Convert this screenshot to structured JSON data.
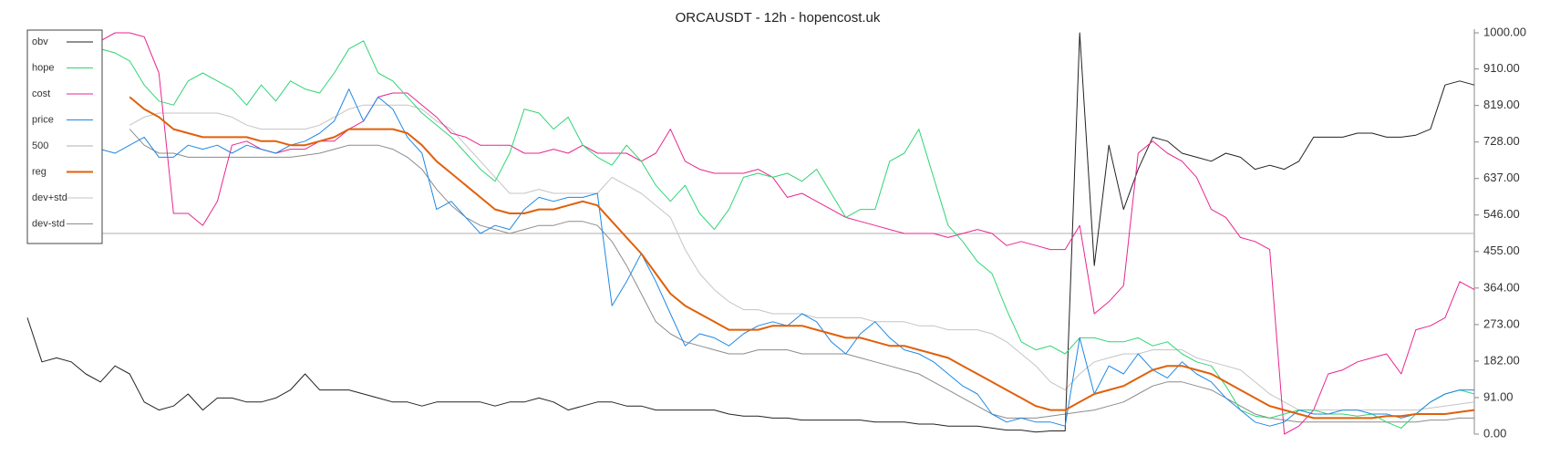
{
  "chart_data": {
    "type": "line",
    "title": "ORCAUSDT - 12h - hopencost.uk",
    "ylim": [
      0,
      1000
    ],
    "yticks": [
      {
        "value": 0,
        "label": "0.00"
      },
      {
        "value": 91,
        "label": "91.00"
      },
      {
        "value": 182,
        "label": "182.00"
      },
      {
        "value": 273,
        "label": "273.00"
      },
      {
        "value": 364,
        "label": "364.00"
      },
      {
        "value": 455,
        "label": "455.00"
      },
      {
        "value": 546,
        "label": "546.00"
      },
      {
        "value": 637,
        "label": "637.00"
      },
      {
        "value": 728,
        "label": "728.00"
      },
      {
        "value": 819,
        "label": "819.00"
      },
      {
        "value": 910,
        "label": "910.00"
      },
      {
        "value": 1000,
        "label": "1000.00"
      }
    ],
    "grid": false,
    "legend": "upper-left",
    "series": [
      {
        "name": "obv",
        "color": "#222222",
        "width": 1,
        "values": [
          290,
          180,
          190,
          180,
          150,
          130,
          170,
          150,
          80,
          60,
          70,
          100,
          60,
          90,
          90,
          80,
          80,
          90,
          110,
          150,
          110,
          110,
          110,
          100,
          90,
          80,
          80,
          70,
          80,
          80,
          80,
          80,
          70,
          80,
          80,
          90,
          80,
          60,
          70,
          80,
          80,
          70,
          70,
          60,
          60,
          60,
          60,
          60,
          50,
          45,
          45,
          40,
          40,
          35,
          35,
          35,
          35,
          35,
          30,
          30,
          30,
          25,
          25,
          20,
          20,
          20,
          15,
          10,
          10,
          5,
          8,
          8,
          1000,
          420,
          720,
          560,
          660,
          740,
          730,
          700,
          690,
          680,
          700,
          690,
          660,
          670,
          660,
          680,
          740,
          740,
          740,
          750,
          750,
          740,
          740,
          745,
          760,
          870,
          880,
          870
        ]
      },
      {
        "name": "hope",
        "color": "#2ed573",
        "width": 1,
        "values": [
          null,
          null,
          null,
          null,
          null,
          960,
          950,
          930,
          870,
          830,
          820,
          880,
          900,
          880,
          860,
          820,
          870,
          830,
          880,
          860,
          850,
          900,
          960,
          980,
          900,
          880,
          840,
          800,
          770,
          740,
          700,
          660,
          630,
          700,
          810,
          800,
          760,
          790,
          720,
          690,
          670,
          720,
          680,
          620,
          580,
          620,
          550,
          510,
          560,
          640,
          650,
          640,
          650,
          630,
          660,
          600,
          540,
          560,
          560,
          680,
          700,
          760,
          640,
          520,
          480,
          430,
          400,
          310,
          230,
          210,
          220,
          200,
          240,
          240,
          230,
          230,
          240,
          220,
          230,
          200,
          180,
          170,
          120,
          60,
          45,
          40,
          50,
          60,
          60,
          50,
          50,
          45,
          50,
          30,
          15,
          50,
          80,
          100,
          110,
          100
        ]
      },
      {
        "name": "cost",
        "color": "#e8258f",
        "width": 1,
        "values": [
          null,
          null,
          null,
          null,
          null,
          980,
          1000,
          1000,
          990,
          900,
          550,
          550,
          520,
          580,
          720,
          730,
          710,
          700,
          710,
          710,
          730,
          730,
          760,
          780,
          840,
          850,
          850,
          820,
          790,
          750,
          740,
          720,
          720,
          720,
          700,
          700,
          710,
          700,
          720,
          700,
          700,
          700,
          680,
          700,
          760,
          680,
          660,
          650,
          650,
          650,
          660,
          640,
          590,
          600,
          580,
          560,
          540,
          530,
          520,
          510,
          500,
          500,
          500,
          490,
          500,
          510,
          500,
          470,
          480,
          470,
          460,
          460,
          520,
          300,
          330,
          370,
          700,
          730,
          700,
          680,
          640,
          560,
          540,
          490,
          480,
          460,
          0,
          20,
          60,
          150,
          160,
          180,
          190,
          200,
          150,
          260,
          270,
          290,
          380,
          360
        ]
      },
      {
        "name": "price",
        "color": "#1e88e5",
        "width": 1,
        "values": [
          null,
          null,
          null,
          null,
          null,
          710,
          700,
          720,
          740,
          690,
          690,
          720,
          710,
          720,
          700,
          720,
          710,
          700,
          720,
          730,
          750,
          780,
          860,
          780,
          840,
          810,
          740,
          700,
          560,
          580,
          540,
          500,
          520,
          510,
          560,
          590,
          580,
          590,
          590,
          600,
          320,
          380,
          450,
          380,
          300,
          220,
          250,
          240,
          220,
          250,
          270,
          280,
          270,
          300,
          280,
          230,
          200,
          250,
          280,
          240,
          210,
          200,
          180,
          150,
          120,
          100,
          50,
          30,
          40,
          30,
          30,
          20,
          240,
          100,
          170,
          150,
          200,
          160,
          140,
          180,
          150,
          130,
          90,
          60,
          30,
          20,
          30,
          60,
          50,
          50,
          60,
          60,
          50,
          50,
          40,
          50,
          80,
          100,
          110,
          110
        ]
      },
      {
        "name": "500",
        "color": "#b0b0b0",
        "width": 1,
        "values": [
          500,
          500,
          500,
          500,
          500,
          500,
          500,
          500,
          500,
          500,
          500,
          500,
          500,
          500,
          500,
          500,
          500,
          500,
          500,
          500,
          500,
          500,
          500,
          500,
          500,
          500,
          500,
          500,
          500,
          500,
          500,
          500,
          500,
          500,
          500,
          500,
          500,
          500,
          500,
          500,
          500,
          500,
          500,
          500,
          500,
          500,
          500,
          500,
          500,
          500,
          500,
          500,
          500,
          500,
          500,
          500,
          500,
          500,
          500,
          500,
          500,
          500,
          500,
          500,
          500,
          500,
          500,
          500,
          500,
          500,
          500,
          500,
          500,
          500,
          500,
          500,
          500,
          500,
          500,
          500,
          500,
          500,
          500,
          500,
          500,
          500,
          500,
          500,
          500,
          500,
          500,
          500,
          500,
          500,
          500,
          500,
          500,
          500,
          500,
          500
        ]
      },
      {
        "name": "reg",
        "color": "#e0600a",
        "width": 2,
        "values": [
          null,
          null,
          null,
          null,
          null,
          null,
          null,
          840,
          810,
          790,
          760,
          750,
          740,
          740,
          740,
          740,
          730,
          730,
          720,
          720,
          730,
          740,
          760,
          760,
          760,
          760,
          750,
          720,
          680,
          650,
          620,
          590,
          560,
          550,
          550,
          560,
          560,
          570,
          580,
          570,
          530,
          490,
          450,
          400,
          350,
          320,
          300,
          280,
          260,
          260,
          260,
          270,
          270,
          270,
          260,
          250,
          240,
          240,
          230,
          220,
          220,
          210,
          200,
          190,
          170,
          150,
          130,
          110,
          90,
          70,
          60,
          60,
          80,
          100,
          110,
          120,
          140,
          160,
          170,
          170,
          160,
          150,
          130,
          110,
          90,
          70,
          60,
          50,
          40,
          40,
          40,
          40,
          40,
          45,
          45,
          50,
          50,
          50,
          55,
          60
        ]
      },
      {
        "name": "dev+std",
        "color": "#c4c4c4",
        "width": 1,
        "values": [
          null,
          null,
          null,
          null,
          null,
          null,
          null,
          770,
          790,
          800,
          800,
          800,
          800,
          800,
          790,
          770,
          760,
          760,
          760,
          760,
          770,
          790,
          810,
          820,
          820,
          820,
          820,
          810,
          780,
          760,
          720,
          680,
          640,
          600,
          600,
          610,
          600,
          600,
          600,
          600,
          640,
          620,
          600,
          570,
          540,
          460,
          400,
          360,
          330,
          310,
          310,
          300,
          300,
          300,
          290,
          290,
          290,
          290,
          280,
          280,
          280,
          270,
          270,
          260,
          260,
          260,
          250,
          230,
          200,
          170,
          130,
          110,
          150,
          180,
          190,
          200,
          200,
          210,
          210,
          210,
          190,
          180,
          170,
          160,
          130,
          100,
          80,
          60,
          60,
          60,
          60,
          60,
          60,
          60,
          60,
          60,
          65,
          70,
          75,
          80
        ]
      },
      {
        "name": "dev-std",
        "color": "#8c8c8c",
        "width": 1,
        "values": [
          null,
          null,
          null,
          null,
          null,
          null,
          null,
          760,
          720,
          700,
          700,
          690,
          690,
          690,
          690,
          690,
          690,
          690,
          690,
          695,
          700,
          710,
          720,
          720,
          720,
          710,
          690,
          660,
          610,
          570,
          540,
          520,
          510,
          500,
          510,
          520,
          520,
          530,
          530,
          520,
          480,
          420,
          350,
          280,
          250,
          230,
          220,
          210,
          200,
          200,
          210,
          210,
          210,
          200,
          200,
          200,
          200,
          190,
          180,
          170,
          160,
          150,
          130,
          110,
          90,
          70,
          50,
          40,
          40,
          40,
          45,
          50,
          55,
          60,
          70,
          80,
          100,
          120,
          130,
          130,
          120,
          110,
          90,
          70,
          50,
          40,
          35,
          30,
          30,
          30,
          30,
          30,
          30,
          30,
          30,
          30,
          35,
          35,
          40,
          40
        ]
      }
    ]
  }
}
